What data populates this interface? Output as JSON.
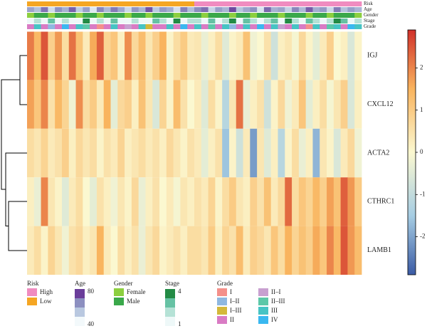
{
  "chart_data": {
    "type": "heatmap",
    "series": [
      {
        "name": "IGJ",
        "values": [
          2.1,
          1.4,
          2.5,
          0.9,
          1.8,
          0.6,
          2.2,
          1.2,
          0.3,
          1.6,
          2.4,
          0.8,
          1.1,
          0.2,
          1.9,
          0.7,
          1.3,
          0.4,
          0.9,
          1.5,
          0.1,
          0.6,
          1.0,
          0.3,
          0.4,
          -0.3,
          0.2,
          0.6,
          -0.5,
          0.1,
          0.3,
          1.2,
          -0.2,
          0.0,
          0.5,
          -0.8,
          0.2,
          0.4,
          -0.1,
          0.7,
          0.1,
          -0.4,
          0.3,
          0.9,
          0.0,
          0.2,
          -0.6,
          0.1
        ]
      },
      {
        "name": "CXCL12",
        "values": [
          1.7,
          1.1,
          2.0,
          0.5,
          1.4,
          0.8,
          -0.2,
          1.9,
          0.6,
          1.0,
          0.3,
          1.5,
          -0.4,
          0.7,
          0.9,
          0.2,
          1.2,
          0.4,
          -0.6,
          0.8,
          0.1,
          1.3,
          0.5,
          0.0,
          0.3,
          -0.5,
          0.6,
          0.1,
          -1.2,
          0.4,
          2.2,
          -0.3,
          0.2,
          0.5,
          -0.8,
          0.1,
          0.7,
          -0.2,
          0.3,
          1.1,
          -0.4,
          0.2,
          0.6,
          -0.1,
          0.4,
          0.9,
          -0.6,
          0.2
        ]
      },
      {
        "name": "ACTA2",
        "values": [
          0.6,
          0.4,
          0.8,
          0.3,
          0.5,
          0.9,
          0.2,
          0.7,
          0.4,
          0.6,
          0.1,
          0.5,
          0.3,
          0.8,
          0.2,
          0.4,
          0.6,
          0.3,
          0.5,
          0.2,
          0.7,
          0.4,
          0.1,
          0.5,
          0.3,
          -0.4,
          0.2,
          0.5,
          -1.6,
          0.1,
          -0.8,
          0.3,
          -2.1,
          0.4,
          -0.5,
          0.2,
          -1.2,
          0.1,
          0.6,
          -0.3,
          0.2,
          -1.8,
          0.4,
          0.1,
          -0.6,
          0.3,
          0.7,
          -0.2
        ]
      },
      {
        "name": "CTHRC1",
        "values": [
          0.2,
          -0.3,
          2.0,
          0.4,
          0.1,
          -0.5,
          0.3,
          0.6,
          0.0,
          -0.4,
          0.5,
          0.2,
          -0.2,
          0.4,
          0.1,
          0.7,
          -0.3,
          0.2,
          0.5,
          0.0,
          0.3,
          -0.1,
          0.4,
          0.2,
          0.5,
          0.3,
          0.8,
          0.1,
          0.6,
          1.0,
          0.4,
          0.2,
          0.9,
          0.5,
          1.2,
          0.3,
          0.7,
          2.3,
          0.6,
          1.1,
          0.8,
          1.4,
          0.9,
          1.7,
          1.2,
          2.4,
          1.8,
          1.0
        ]
      },
      {
        "name": "LAMB1",
        "values": [
          0.3,
          0.6,
          0.1,
          0.8,
          0.4,
          -0.2,
          0.5,
          0.7,
          0.2,
          0.4,
          1.5,
          0.3,
          0.0,
          0.6,
          0.2,
          0.5,
          -0.3,
          0.4,
          0.7,
          0.1,
          0.3,
          0.5,
          0.2,
          0.6,
          0.6,
          0.4,
          1.0,
          0.2,
          0.8,
          0.5,
          1.3,
          0.3,
          0.9,
          0.7,
          0.4,
          1.1,
          0.6,
          1.5,
          0.8,
          1.2,
          0.9,
          1.6,
          1.1,
          2.0,
          1.4,
          2.5,
          1.8,
          1.3
        ]
      }
    ],
    "colorscale": [
      [
        -2.9,
        "#3b5ba5"
      ],
      [
        -1.5,
        "#a6cde3"
      ],
      [
        0,
        "#fbf8d0"
      ],
      [
        1.5,
        "#f9b45e"
      ],
      [
        2.9,
        "#d1302a"
      ]
    ],
    "colorbar": {
      "lim": [
        -2.9,
        2.9
      ],
      "ticks": [
        -2,
        -1,
        0,
        1,
        2
      ]
    },
    "annotations": [
      {
        "name": "Risk",
        "values": [
          "Low",
          "Low",
          "Low",
          "Low",
          "Low",
          "Low",
          "Low",
          "Low",
          "Low",
          "Low",
          "Low",
          "Low",
          "Low",
          "Low",
          "Low",
          "Low",
          "Low",
          "Low",
          "Low",
          "Low",
          "Low",
          "Low",
          "Low",
          "Low",
          "High",
          "High",
          "High",
          "High",
          "High",
          "High",
          "High",
          "High",
          "High",
          "High",
          "High",
          "High",
          "High",
          "High",
          "High",
          "High",
          "High",
          "High",
          "High",
          "High",
          "High",
          "High",
          "High",
          "High"
        ]
      },
      {
        "name": "Age",
        "values": [
          62,
          55,
          71,
          48,
          66,
          59,
          74,
          52,
          63,
          45,
          68,
          57,
          70,
          61,
          49,
          65,
          58,
          76,
          53,
          64,
          60,
          47,
          69,
          56,
          67,
          72,
          50,
          63,
          58,
          78,
          54,
          61,
          66,
          46,
          73,
          59,
          62,
          51,
          68,
          57,
          75,
          60,
          64,
          49,
          70,
          55,
          63,
          58
        ]
      },
      {
        "name": "Gender",
        "values": [
          "Female",
          "Male",
          "Male",
          "Female",
          "Male",
          "Male",
          "Male",
          "Female",
          "Male",
          "Male",
          "Female",
          "Male",
          "Male",
          "Male",
          "Female",
          "Male",
          "Male",
          "Female",
          "Male",
          "Male",
          "Male",
          "Female",
          "Male",
          "Male",
          "Male",
          "Female",
          "Male",
          "Male",
          "Male",
          "Female",
          "Male",
          "Male",
          "Female",
          "Male",
          "Male",
          "Male",
          "Female",
          "Male",
          "Male",
          "Male",
          "Female",
          "Male",
          "Male",
          "Female",
          "Male",
          "Male",
          "Male",
          "Female"
        ]
      },
      {
        "name": "Stage",
        "values": [
          1,
          2,
          1,
          3,
          1,
          2,
          1,
          1,
          4,
          1,
          2,
          1,
          3,
          1,
          1,
          2,
          1,
          1,
          3,
          2,
          1,
          4,
          1,
          2,
          2,
          1,
          3,
          1,
          2,
          4,
          1,
          3,
          2,
          1,
          2,
          3,
          1,
          4,
          2,
          1,
          3,
          2,
          1,
          2,
          4,
          3,
          1,
          2
        ]
      },
      {
        "name": "Grade",
        "values": [
          "II",
          "III",
          "II",
          "I–II",
          "II",
          "IV",
          "II",
          "III",
          "II–III",
          "II",
          "I",
          "II",
          "III",
          "II",
          "II–I",
          "II",
          "III",
          "I–III",
          "II",
          "II",
          "III",
          "II",
          "IV",
          "II",
          "III",
          "II",
          "II–III",
          "II",
          "III",
          "I–II",
          "II",
          "III",
          "II",
          "IV",
          "II",
          "III",
          "II–I",
          "II",
          "III",
          "II",
          "I",
          "III",
          "II",
          "II–III",
          "III",
          "II",
          "IV",
          "III"
        ]
      }
    ],
    "legend": [
      {
        "title": "Risk",
        "items": [
          {
            "label": "High",
            "color": "#f08cc0"
          },
          {
            "label": "Low",
            "color": "#f5a623"
          }
        ]
      },
      {
        "title": "Age",
        "lim": [
          40,
          80
        ],
        "ticks": [
          80,
          40
        ],
        "colors": [
          "#f3f9fb",
          "#b9c8e0",
          "#8c8fc0",
          "#6a3d9a"
        ]
      },
      {
        "title": "Gender",
        "items": [
          {
            "label": "Female",
            "color": "#8ccf3f"
          },
          {
            "label": "Male",
            "color": "#3aa84a"
          }
        ]
      },
      {
        "title": "Stage",
        "lim": [
          1,
          4
        ],
        "ticks": [
          4,
          1
        ],
        "colors": [
          "#eef8f8",
          "#b5e2d6",
          "#66c2a4",
          "#238b45"
        ]
      },
      {
        "title": "Grade",
        "items": [
          {
            "label": "I",
            "color": "#f4908a"
          },
          {
            "label": "I–II",
            "color": "#8fb8e0"
          },
          {
            "label": "I–III",
            "color": "#d4b83a"
          },
          {
            "label": "II",
            "color": "#d97bc4"
          },
          {
            "label": "II–I",
            "color": "#c8a0d0"
          },
          {
            "label": "II–III",
            "color": "#5cc8a8"
          },
          {
            "label": "III",
            "color": "#46c4c4"
          },
          {
            "label": "IV",
            "color": "#3ab8f0"
          }
        ]
      }
    ]
  }
}
